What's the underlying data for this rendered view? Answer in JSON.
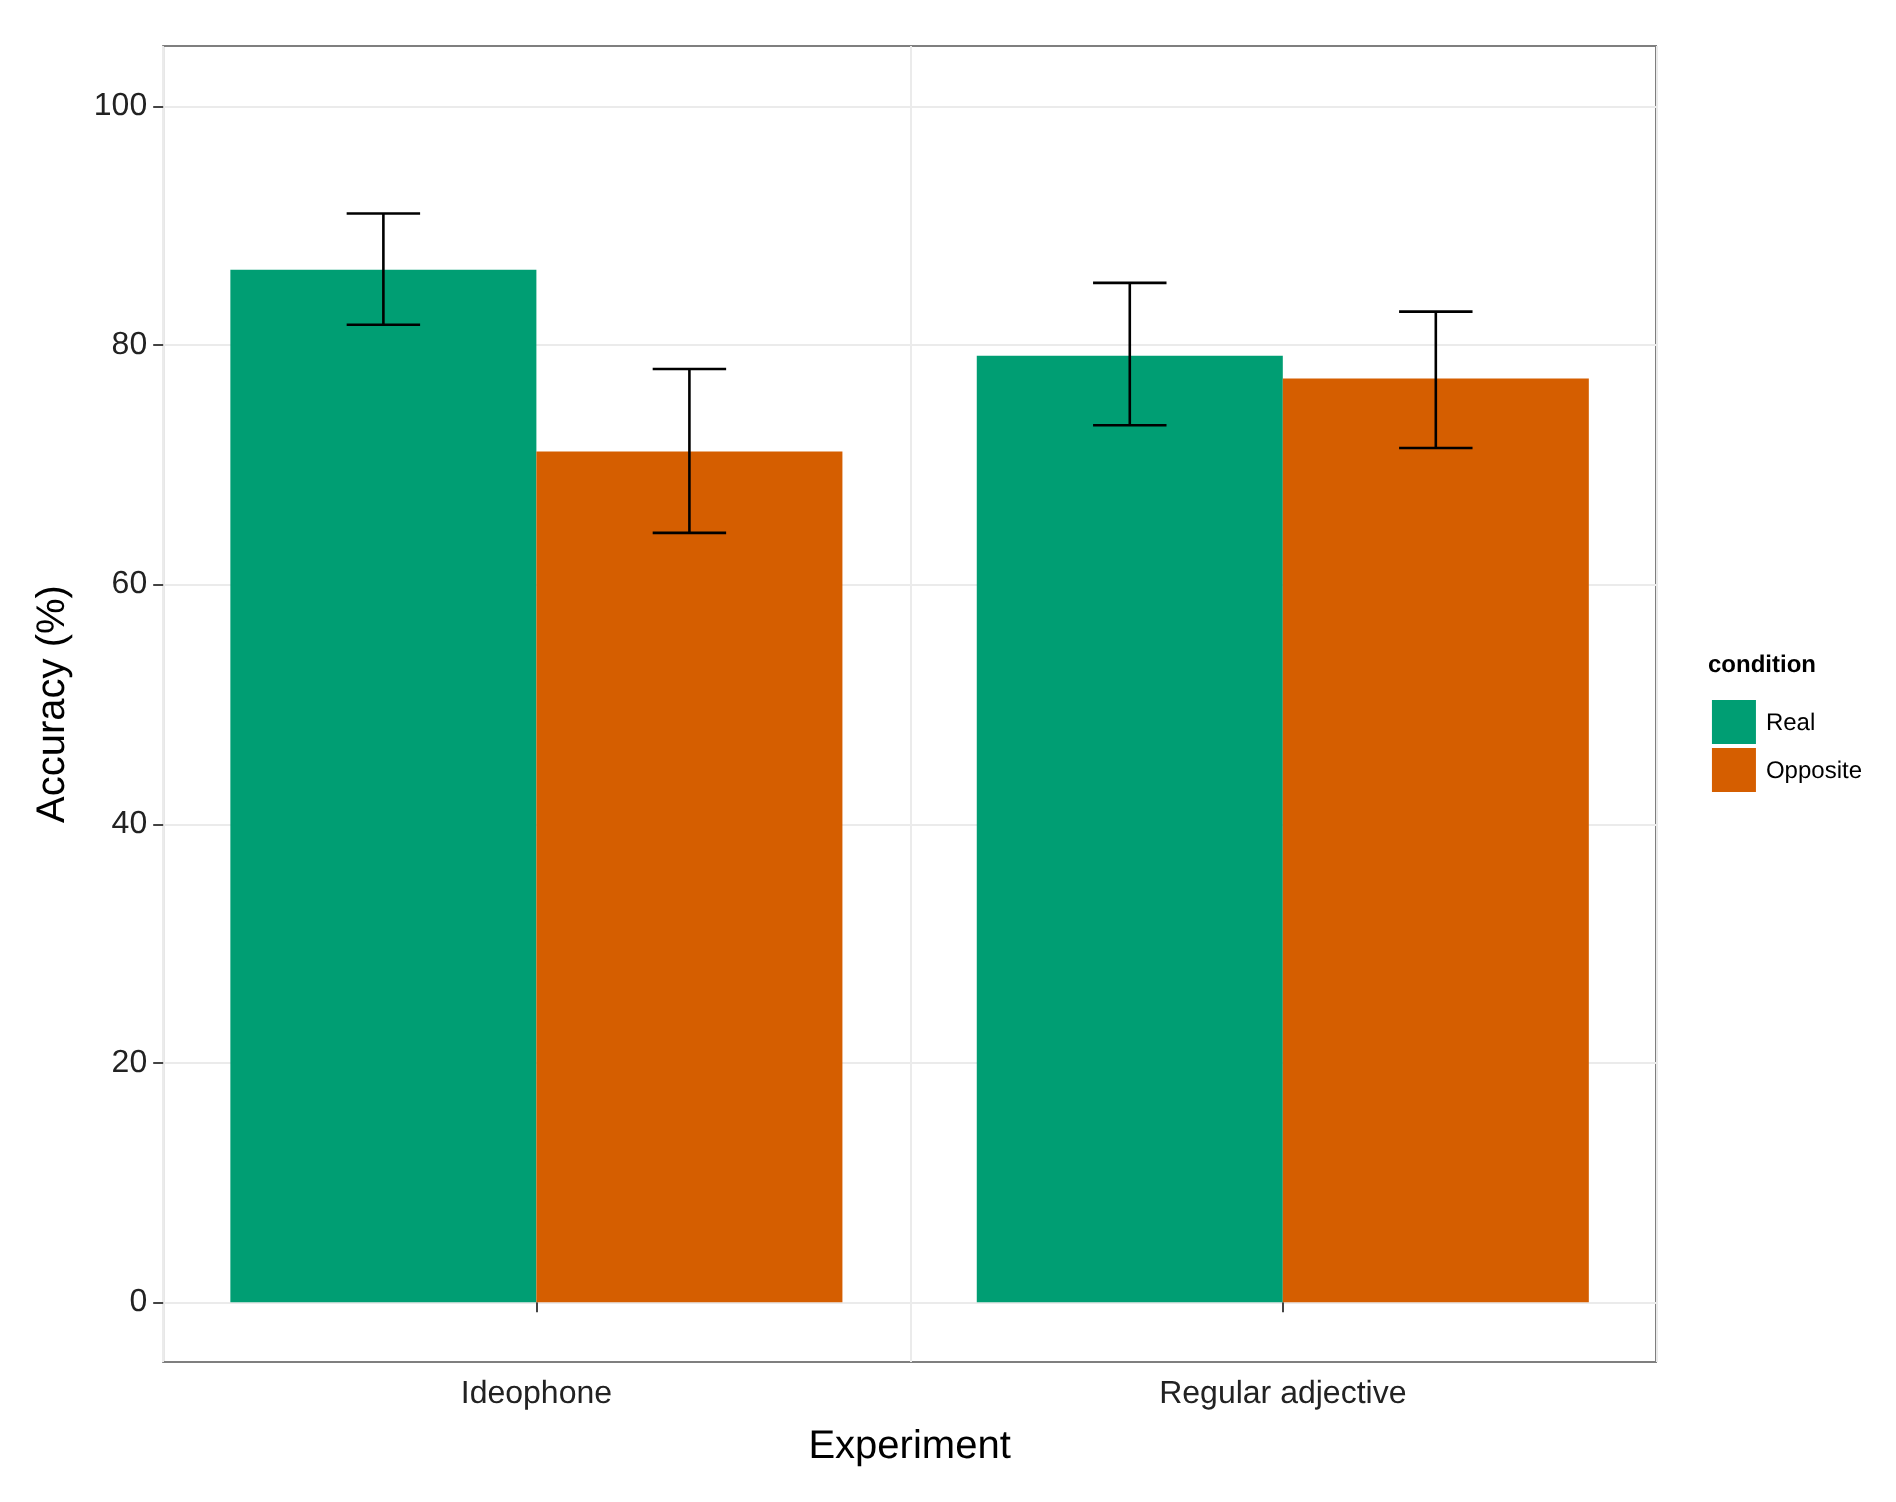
{
  "chart_data": {
    "type": "bar",
    "xlabel": "Experiment",
    "ylabel": "Accuracy (%)",
    "legend_title": "condition",
    "categories": [
      "Ideophone",
      "Regular adjective"
    ],
    "series": [
      {
        "name": "Real",
        "color": "#009e73",
        "values": [
          86.3,
          79.1
        ],
        "errors": [
          [
            81.7,
            91.0
          ],
          [
            73.3,
            85.2
          ]
        ]
      },
      {
        "name": "Opposite",
        "color": "#d55e00",
        "values": [
          71.1,
          77.2
        ],
        "errors": [
          [
            64.3,
            78.0
          ],
          [
            71.4,
            82.8
          ]
        ]
      }
    ],
    "ylim": [
      -5,
      105
    ],
    "yticks": [
      0,
      20,
      40,
      60,
      80,
      100
    ],
    "grid": true,
    "legend": "right"
  }
}
